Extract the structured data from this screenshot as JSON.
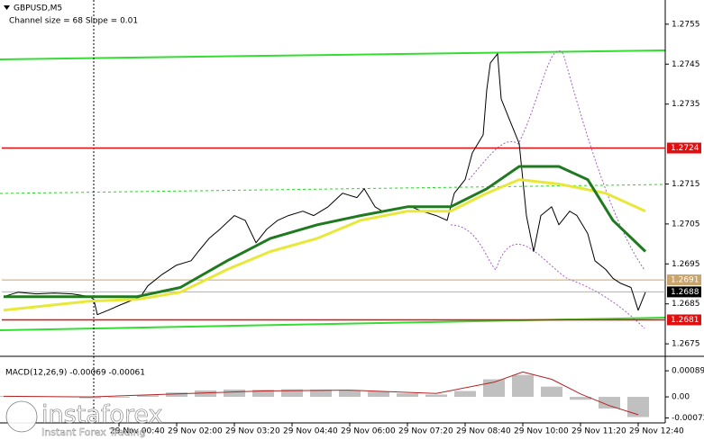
{
  "chart_data": [
    {
      "type": "line",
      "title": "GBPUSD,M5",
      "subtitle": "Channel size = 68 Slope = 0.01",
      "xlim": [
        -0.5,
        183.5
      ],
      "ylim": [
        1.26721,
        1.27606
      ],
      "xticks": [
        {
          "value": 32,
          "label": "29 Nov 00:40"
        },
        {
          "value": 48,
          "label": "29 Nov 02:00"
        },
        {
          "value": 64,
          "label": "29 Nov 03:20"
        },
        {
          "value": 80,
          "label": "29 Nov 04:40"
        },
        {
          "value": 96,
          "label": "29 Nov 06:00"
        },
        {
          "value": 112,
          "label": "29 Nov 07:20"
        },
        {
          "value": 128,
          "label": "29 Nov 08:40"
        },
        {
          "value": 144,
          "label": "29 Nov 10:00"
        },
        {
          "value": 160,
          "label": "29 Nov 11:20"
        },
        {
          "value": 176,
          "label": "29 Nov 12:40"
        }
      ],
      "yticks": [
        1.2755,
        1.2745,
        1.2735,
        1.2715,
        1.2705,
        1.2695,
        1.2685,
        1.2675
      ],
      "levels": [
        {
          "value": 1.2724,
          "color": "#e01010"
        },
        {
          "value": 1.2691,
          "color": "#c9a46c"
        },
        {
          "value": 1.2688,
          "color": "#000000"
        },
        {
          "value": 1.2681,
          "color": "#e01010"
        }
      ],
      "series": [
        {
          "color": "#000000",
          "width": 1,
          "x": [
            0,
            4,
            9,
            14,
            19,
            24,
            25,
            26,
            29,
            32,
            35,
            38,
            40,
            44,
            48,
            52,
            54,
            57,
            60,
            64,
            67,
            70,
            73,
            76,
            79,
            83,
            86,
            90,
            94,
            98,
            100,
            103,
            105,
            109,
            113,
            116,
            120,
            123,
            125,
            128,
            130,
            133,
            134,
            135,
            137,
            138,
            140,
            143,
            144,
            145,
            147,
            149,
            152,
            154,
            157,
            159,
            162,
            164,
            167,
            169,
            171,
            174,
            176,
            178
          ],
          "values": [
            1.26868,
            1.26879,
            1.26875,
            1.26877,
            1.26875,
            1.26868,
            1.26861,
            1.26823,
            1.26834,
            1.26846,
            1.26857,
            1.26868,
            1.26895,
            1.26924,
            1.26947,
            1.26958,
            1.26981,
            1.27014,
            1.27037,
            1.27071,
            1.27059,
            1.27003,
            1.27037,
            1.27059,
            1.27071,
            1.27082,
            1.27071,
            1.27093,
            1.27127,
            1.27116,
            1.27138,
            1.27093,
            1.27082,
            1.27089,
            1.27093,
            1.27082,
            1.27071,
            1.27059,
            1.27127,
            1.27161,
            1.27228,
            1.27273,
            1.27386,
            1.27453,
            1.27476,
            1.27363,
            1.27318,
            1.27251,
            1.27161,
            1.27071,
            1.26981,
            1.27071,
            1.27093,
            1.27048,
            1.27082,
            1.27071,
            1.27026,
            1.26958,
            1.26936,
            1.26914,
            1.26902,
            1.26891,
            1.26834,
            1.26879
          ]
        },
        {
          "color": "#e8e83a",
          "width": 3,
          "x": [
            0,
            24,
            37,
            49,
            62,
            74,
            87,
            99,
            112,
            124,
            134,
            143,
            154,
            167,
            178
          ],
          "values": [
            1.26834,
            1.26857,
            1.26861,
            1.26879,
            1.26936,
            1.26981,
            1.27014,
            1.27059,
            1.27082,
            1.27082,
            1.27127,
            1.27161,
            1.2715,
            1.27127,
            1.27082
          ]
        },
        {
          "color": "#1f7a1f",
          "width": 3,
          "x": [
            0,
            24,
            37,
            49,
            62,
            74,
            87,
            99,
            112,
            124,
            134,
            143,
            154,
            162,
            169,
            178
          ],
          "values": [
            1.26868,
            1.26868,
            1.26868,
            1.26891,
            1.26958,
            1.27014,
            1.27048,
            1.27071,
            1.27093,
            1.27093,
            1.27138,
            1.27194,
            1.27194,
            1.27161,
            1.27059,
            1.26981
          ]
        }
      ]
    },
    {
      "type": "bar",
      "title": "MACD(12,26,9) -0.00069 -0.00061",
      "xlim": [
        -0.5,
        183.5
      ],
      "ylim": [
        -0.00089,
        0.00117
      ],
      "yticks": [
        0.00089,
        {
          "value": 0,
          "label": "0.00"
        },
        -0.00072
      ],
      "color": "#c0c0c0",
      "x": [
        0,
        8,
        16,
        24,
        32,
        40,
        48,
        56,
        64,
        72,
        80,
        88,
        96,
        104,
        112,
        120,
        128,
        136,
        144,
        152,
        160,
        168,
        176
      ],
      "values": [
        3e-05,
        2e-05,
        1e-05,
        -5e-05,
        -3e-05,
        5e-05,
        0.00015,
        0.00022,
        0.00025,
        0.00024,
        0.00026,
        0.00025,
        0.00022,
        0.00018,
        0.00012,
        8e-05,
        0.0002,
        0.0006,
        0.00075,
        0.00035,
        -0.0001,
        -0.0004,
        -0.00069
      ],
      "signal": {
        "color": "#b22222",
        "x": [
          0,
          24,
          48,
          72,
          96,
          120,
          136,
          144,
          152,
          160,
          168,
          176
        ],
        "values": [
          2e-05,
          0,
          0.0001,
          0.0002,
          0.00023,
          0.00012,
          0.0005,
          0.00085,
          0.0006,
          0.0001,
          -0.0003,
          -0.00061
        ]
      }
    }
  ],
  "watermark": {
    "brand": "instaforex",
    "tagline": "Instant Forex Trading"
  }
}
